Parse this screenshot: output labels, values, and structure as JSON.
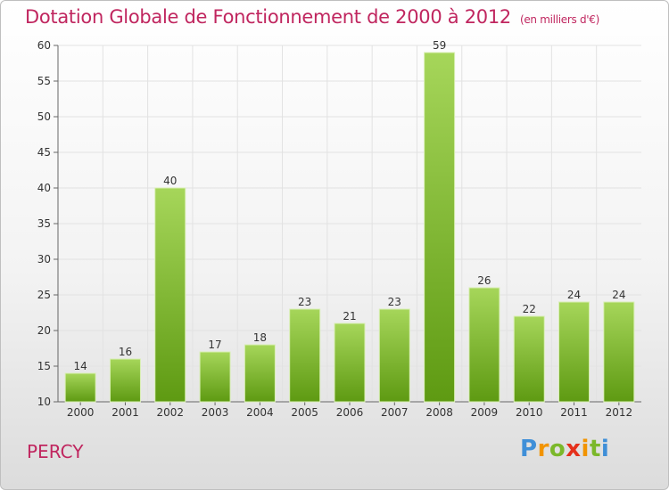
{
  "header": {
    "title": "Dotation Globale de Fonctionnement de 2000 à 2012",
    "subtitle": "(en milliers d'€)"
  },
  "footer": {
    "city": "PERCY",
    "logo_letters": [
      "P",
      "r",
      "o",
      "x",
      "i",
      "t",
      "i"
    ],
    "logo_colors": [
      "#3f8fd8",
      "#f29400",
      "#7bb82a",
      "#e5301b",
      "#f29400",
      "#7bb82a",
      "#3f8fd8"
    ]
  },
  "chart_data": {
    "type": "bar",
    "title": "Dotation Globale de Fonctionnement de 2000 à 2012",
    "subtitle": "(en milliers d'€)",
    "categories": [
      "2000",
      "2001",
      "2002",
      "2003",
      "2004",
      "2005",
      "2006",
      "2007",
      "2008",
      "2009",
      "2010",
      "2011",
      "2012"
    ],
    "values": [
      14,
      16,
      40,
      17,
      18,
      23,
      21,
      23,
      59,
      26,
      22,
      24,
      24
    ],
    "xlabel": "",
    "ylabel": "",
    "ylim": [
      10,
      60
    ],
    "yticks": [
      10,
      15,
      20,
      25,
      30,
      35,
      40,
      45,
      50,
      55,
      60
    ],
    "grid": true,
    "bar_color_top": "#a6d65a",
    "bar_color_bottom": "#5e9a12"
  }
}
